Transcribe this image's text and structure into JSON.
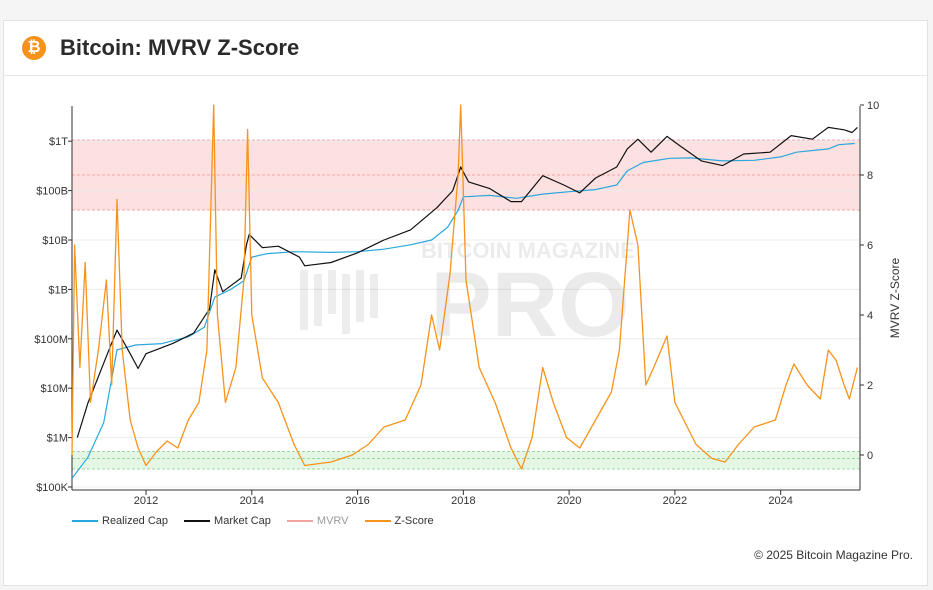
{
  "header": {
    "icon": "bitcoin-icon",
    "icon_glyph": "₿",
    "title": "Bitcoin: MVRV Z-Score"
  },
  "watermark": {
    "line1": "BITCOIN MAGAZINE",
    "line2": "PRO"
  },
  "footer": {
    "copyright": "© 2025 Bitcoin Magazine Pro."
  },
  "chart_data": {
    "type": "line",
    "x_ticks": [
      "2012",
      "2014",
      "2016",
      "2018",
      "2020",
      "2022",
      "2024"
    ],
    "x_range": [
      2010.6,
      2025.5
    ],
    "left_axis": {
      "scale": "log",
      "ticks": [
        {
          "label": "$100K",
          "value": 100000
        },
        {
          "label": "$1M",
          "value": 1000000
        },
        {
          "label": "$10M",
          "value": 10000000
        },
        {
          "label": "$100M",
          "value": 100000000
        },
        {
          "label": "$1B",
          "value": 1000000000
        },
        {
          "label": "$10B",
          "value": 10000000000
        },
        {
          "label": "$100B",
          "value": 100000000000
        },
        {
          "label": "$1T",
          "value": 1000000000000
        }
      ]
    },
    "right_axis": {
      "label": "MVRV Z-Score",
      "ticks": [
        "10",
        "8",
        "6",
        "4",
        "2",
        "0"
      ],
      "range": [
        -1,
        10
      ]
    },
    "bands": [
      {
        "name": "high",
        "from": 7,
        "to": 9,
        "color": "#fde0e0"
      },
      {
        "name": "low",
        "from": -0.4,
        "to": 0.1,
        "color": "#e4f6e4"
      }
    ],
    "series": [
      {
        "name": "Realized Cap",
        "color": "#2aa7dc",
        "axis": "left",
        "points": [
          [
            2010.6,
            150000
          ],
          [
            2010.9,
            400000
          ],
          [
            2011.2,
            2000000
          ],
          [
            2011.45,
            60000000
          ],
          [
            2011.8,
            75000000
          ],
          [
            2012.3,
            80000000
          ],
          [
            2012.8,
            110000000
          ],
          [
            2013.1,
            170000000
          ],
          [
            2013.3,
            700000000
          ],
          [
            2013.6,
            1000000000
          ],
          [
            2013.85,
            1500000000
          ],
          [
            2014.0,
            4500000000
          ],
          [
            2014.3,
            5300000000
          ],
          [
            2014.8,
            5800000000
          ],
          [
            2015.5,
            5600000000
          ],
          [
            2016.0,
            5800000000
          ],
          [
            2016.5,
            6500000000
          ],
          [
            2017.0,
            8000000000
          ],
          [
            2017.4,
            10000000000
          ],
          [
            2017.7,
            18000000000
          ],
          [
            2017.9,
            40000000000
          ],
          [
            2018.0,
            75000000000
          ],
          [
            2018.5,
            80000000000
          ],
          [
            2019.0,
            70000000000
          ],
          [
            2019.5,
            85000000000
          ],
          [
            2020.0,
            95000000000
          ],
          [
            2020.5,
            105000000000
          ],
          [
            2020.9,
            130000000000
          ],
          [
            2021.1,
            250000000000
          ],
          [
            2021.4,
            370000000000
          ],
          [
            2021.9,
            450000000000
          ],
          [
            2022.3,
            460000000000
          ],
          [
            2022.9,
            400000000000
          ],
          [
            2023.5,
            410000000000
          ],
          [
            2024.0,
            480000000000
          ],
          [
            2024.3,
            600000000000
          ],
          [
            2024.9,
            700000000000
          ],
          [
            2025.1,
            850000000000
          ],
          [
            2025.4,
            900000000000
          ]
        ]
      },
      {
        "name": "Market Cap",
        "color": "#111111",
        "axis": "left",
        "points": [
          [
            2010.7,
            1000000
          ],
          [
            2010.9,
            5000000
          ],
          [
            2011.3,
            60000000
          ],
          [
            2011.45,
            150000000
          ],
          [
            2011.7,
            50000000
          ],
          [
            2011.85,
            25000000
          ],
          [
            2012.0,
            50000000
          ],
          [
            2012.5,
            80000000
          ],
          [
            2012.9,
            130000000
          ],
          [
            2013.2,
            400000000
          ],
          [
            2013.3,
            2500000000
          ],
          [
            2013.45,
            900000000
          ],
          [
            2013.8,
            1700000000
          ],
          [
            2013.9,
            8000000000
          ],
          [
            2013.95,
            13000000000
          ],
          [
            2014.2,
            7000000000
          ],
          [
            2014.5,
            7500000000
          ],
          [
            2014.9,
            4500000000
          ],
          [
            2015.0,
            3000000000
          ],
          [
            2015.5,
            3500000000
          ],
          [
            2016.0,
            5500000000
          ],
          [
            2016.5,
            10000000000
          ],
          [
            2017.0,
            16000000000
          ],
          [
            2017.5,
            45000000000
          ],
          [
            2017.8,
            100000000000
          ],
          [
            2017.95,
            300000000000
          ],
          [
            2018.1,
            150000000000
          ],
          [
            2018.5,
            110000000000
          ],
          [
            2018.9,
            60000000000
          ],
          [
            2019.1,
            60000000000
          ],
          [
            2019.5,
            200000000000
          ],
          [
            2019.9,
            130000000000
          ],
          [
            2020.2,
            90000000000
          ],
          [
            2020.5,
            180000000000
          ],
          [
            2020.9,
            300000000000
          ],
          [
            2021.1,
            700000000000
          ],
          [
            2021.3,
            1100000000000
          ],
          [
            2021.55,
            600000000000
          ],
          [
            2021.85,
            1250000000000
          ],
          [
            2022.1,
            800000000000
          ],
          [
            2022.5,
            400000000000
          ],
          [
            2022.9,
            320000000000
          ],
          [
            2023.3,
            550000000000
          ],
          [
            2023.8,
            600000000000
          ],
          [
            2024.2,
            1300000000000
          ],
          [
            2024.6,
            1100000000000
          ],
          [
            2024.9,
            1900000000000
          ],
          [
            2025.2,
            1700000000000
          ],
          [
            2025.35,
            1500000000000
          ],
          [
            2025.45,
            1900000000000
          ]
        ]
      },
      {
        "name": "MVRV",
        "color": "#f4a3a3",
        "axis": "right",
        "points": []
      },
      {
        "name": "Z-Score",
        "color": "#f7931a",
        "axis": "right",
        "points": [
          [
            2010.6,
            0
          ],
          [
            2010.65,
            6
          ],
          [
            2010.75,
            2.5
          ],
          [
            2010.85,
            5.5
          ],
          [
            2010.95,
            1.5
          ],
          [
            2011.1,
            3
          ],
          [
            2011.25,
            5
          ],
          [
            2011.35,
            2
          ],
          [
            2011.45,
            7.3
          ],
          [
            2011.55,
            3
          ],
          [
            2011.7,
            1
          ],
          [
            2011.85,
            0.2
          ],
          [
            2012.0,
            -0.3
          ],
          [
            2012.2,
            0.1
          ],
          [
            2012.4,
            0.4
          ],
          [
            2012.6,
            0.2
          ],
          [
            2012.8,
            1
          ],
          [
            2013.0,
            1.5
          ],
          [
            2013.15,
            3
          ],
          [
            2013.28,
            10
          ],
          [
            2013.35,
            4
          ],
          [
            2013.5,
            1.5
          ],
          [
            2013.7,
            2.5
          ],
          [
            2013.85,
            5
          ],
          [
            2013.92,
            9.3
          ],
          [
            2014.0,
            4
          ],
          [
            2014.2,
            2.2
          ],
          [
            2014.5,
            1.5
          ],
          [
            2014.8,
            0.3
          ],
          [
            2015.0,
            -0.3
          ],
          [
            2015.5,
            -0.2
          ],
          [
            2015.9,
            0
          ],
          [
            2016.2,
            0.3
          ],
          [
            2016.5,
            0.8
          ],
          [
            2016.9,
            1
          ],
          [
            2017.2,
            2
          ],
          [
            2017.4,
            4
          ],
          [
            2017.55,
            3
          ],
          [
            2017.75,
            5.2
          ],
          [
            2017.9,
            8
          ],
          [
            2017.95,
            10
          ],
          [
            2018.05,
            5
          ],
          [
            2018.3,
            2.5
          ],
          [
            2018.6,
            1.5
          ],
          [
            2018.9,
            0.2
          ],
          [
            2019.1,
            -0.4
          ],
          [
            2019.3,
            0.5
          ],
          [
            2019.5,
            2.5
          ],
          [
            2019.7,
            1.5
          ],
          [
            2019.95,
            0.5
          ],
          [
            2020.2,
            0.2
          ],
          [
            2020.5,
            1
          ],
          [
            2020.8,
            1.8
          ],
          [
            2020.95,
            3
          ],
          [
            2021.1,
            6
          ],
          [
            2021.15,
            7
          ],
          [
            2021.3,
            6
          ],
          [
            2021.45,
            2
          ],
          [
            2021.6,
            2.5
          ],
          [
            2021.85,
            3.4
          ],
          [
            2022.0,
            1.5
          ],
          [
            2022.4,
            0.3
          ],
          [
            2022.7,
            -0.1
          ],
          [
            2022.95,
            -0.2
          ],
          [
            2023.2,
            0.3
          ],
          [
            2023.5,
            0.8
          ],
          [
            2023.9,
            1
          ],
          [
            2024.1,
            2
          ],
          [
            2024.25,
            2.6
          ],
          [
            2024.5,
            2
          ],
          [
            2024.75,
            1.6
          ],
          [
            2024.9,
            3
          ],
          [
            2025.05,
            2.7
          ],
          [
            2025.2,
            2
          ],
          [
            2025.3,
            1.6
          ],
          [
            2025.45,
            2.5
          ]
        ]
      }
    ],
    "legend": {
      "placement": "bottom-left"
    }
  }
}
